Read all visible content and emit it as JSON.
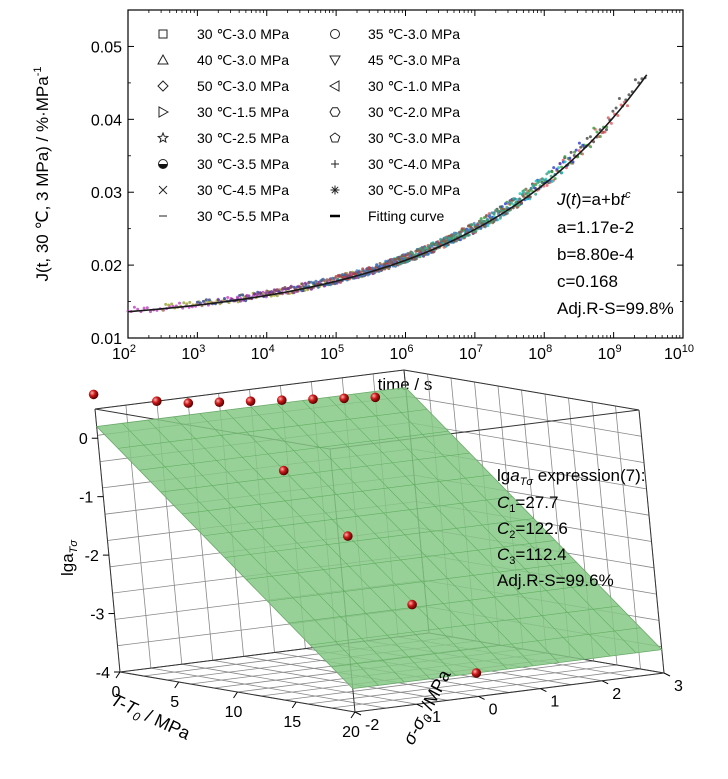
{
  "chart_data": [
    {
      "type": "line",
      "title": "",
      "xlabel": "time / s",
      "ylabel": "J(t, 30 ℃, 3 MPa) / %·MPa",
      "ylabel_sup": "-1",
      "xscale": "log",
      "xlim": [
        100,
        10000000000
      ],
      "ylim": [
        0.01,
        0.055
      ],
      "x_ticks": [
        {
          "base": "10",
          "exp": "2"
        },
        {
          "base": "10",
          "exp": "3"
        },
        {
          "base": "10",
          "exp": "4"
        },
        {
          "base": "10",
          "exp": "5"
        },
        {
          "base": "10",
          "exp": "6"
        },
        {
          "base": "10",
          "exp": "7"
        },
        {
          "base": "10",
          "exp": "8"
        },
        {
          "base": "10",
          "exp": "9"
        },
        {
          "base": "10",
          "exp": "10"
        }
      ],
      "y_ticks": [
        "0.01",
        "0.02",
        "0.03",
        "0.04",
        "0.05"
      ],
      "y_tick_values": [
        0.01,
        0.02,
        0.03,
        0.04,
        0.05
      ],
      "legend_placement": "top-left",
      "legend": [
        {
          "label": "30 ℃-3.0 MPa",
          "symbol": "square",
          "color": "#444444",
          "x_range": [
            6.3,
            9.5
          ]
        },
        {
          "label": "35 ℃-3.0 MPa",
          "symbol": "circle",
          "color": "#e05a5a",
          "x_range": [
            6.0,
            9.2
          ]
        },
        {
          "label": "40 ℃-3.0 MPa",
          "symbol": "triangle-up",
          "color": "#3a9a3a",
          "x_range": [
            5.7,
            8.9
          ]
        },
        {
          "label": "45 ℃-3.0 MPa",
          "symbol": "triangle-down",
          "color": "#2a3ad0",
          "x_range": [
            5.4,
            8.6
          ]
        },
        {
          "label": "50 ℃-3.0 MPa",
          "symbol": "diamond",
          "color": "#20c0c0",
          "x_range": [
            5.1,
            8.3
          ]
        },
        {
          "label": "30 ℃-1.0 MPa",
          "symbol": "triangle-left",
          "color": "#c040c0",
          "x_range": [
            2.0,
            5.2
          ]
        },
        {
          "label": "30 ℃-1.5 MPa",
          "symbol": "triangle-right",
          "color": "#9aa030",
          "x_range": [
            2.5,
            5.5
          ]
        },
        {
          "label": "30 ℃-2.0 MPa",
          "symbol": "hexagon",
          "color": "#304090",
          "x_range": [
            3.0,
            6.0
          ]
        },
        {
          "label": "30 ℃-2.5 MPa",
          "symbol": "star",
          "color": "#803090",
          "x_range": [
            3.5,
            6.3
          ]
        },
        {
          "label": "30 ℃-3.0 MPa",
          "symbol": "pentagon",
          "color": "#905050",
          "x_range": [
            4.0,
            6.6
          ]
        },
        {
          "label": "30 ℃-3.5 MPa",
          "symbol": "half-circle",
          "color": "#3070a0",
          "x_range": [
            4.5,
            6.9
          ]
        },
        {
          "label": "30 ℃-4.0 MPa",
          "symbol": "plus",
          "color": "#b04040",
          "x_range": [
            5.0,
            7.2
          ]
        },
        {
          "label": "30 ℃-4.5 MPa",
          "symbol": "cross",
          "color": "#4080c0",
          "x_range": [
            5.3,
            7.5
          ]
        },
        {
          "label": "30 ℃-5.0 MPa",
          "symbol": "asterisk",
          "color": "#806040",
          "x_range": [
            5.6,
            7.8
          ]
        },
        {
          "label": "30 ℃-5.5 MPa",
          "symbol": "dash",
          "color": "#40a080",
          "x_range": [
            5.9,
            8.1
          ]
        },
        {
          "label": "Fitting curve",
          "symbol": "line",
          "color": "#000000"
        }
      ],
      "fit": {
        "a": 0.0117,
        "b": 0.00088,
        "c": 0.168,
        "x_range": [
          100,
          3000000000
        ]
      },
      "annotation": {
        "formula_italic": "J",
        "formula_mid": "(",
        "formula_italic2": "t",
        "formula_rest": ")=a+b",
        "formula_italic3": "t",
        "formula_sup": "c",
        "lines": [
          "a=1.17e-2",
          "b=8.80e-4",
          "c=0.168",
          "Adj.R-S=99.8%"
        ]
      }
    },
    {
      "type": "scatter",
      "title": "",
      "zlabel": "lga",
      "zlabel_sub": "Tσ",
      "xlabel": "T-T",
      "xlabel_sub": "0",
      "xlabel_unit": " / MPa",
      "ylabel": "σ-σ",
      "ylabel_sub": "0",
      "ylabel_unit": " /MPa",
      "z_ticks": [
        "0",
        "-1",
        "-2",
        "-3",
        "-4"
      ],
      "x_ticks": [
        "0",
        "5",
        "10",
        "15",
        "20"
      ],
      "y_ticks": [
        "-2",
        "-1",
        "0",
        "1",
        "2",
        "3"
      ],
      "xlim": [
        0,
        20
      ],
      "ylim": [
        -2,
        3
      ],
      "zlim": [
        -4,
        0.5
      ],
      "surface_color": "#88cc88",
      "point_color": "#cc1a1a",
      "points": [
        {
          "x": 0,
          "y": -2,
          "z": 0.75
        },
        {
          "x": 0,
          "y": -1,
          "z": 0.5
        },
        {
          "x": 0,
          "y": -0.5,
          "z": 0.4
        },
        {
          "x": 0,
          "y": 0,
          "z": 0.35
        },
        {
          "x": 0,
          "y": 0.5,
          "z": 0.3
        },
        {
          "x": 0,
          "y": 1,
          "z": 0.25
        },
        {
          "x": 0,
          "y": 1.5,
          "z": 0.2
        },
        {
          "x": 0,
          "y": 2,
          "z": 0.15
        },
        {
          "x": 0,
          "y": 2.5,
          "z": 0.1
        },
        {
          "x": 5,
          "y": 0,
          "z": -0.65
        },
        {
          "x": 10,
          "y": 0,
          "z": -1.6
        },
        {
          "x": 15,
          "y": 0,
          "z": -2.6
        },
        {
          "x": 20,
          "y": 0,
          "z": -3.6
        }
      ],
      "annotation": {
        "title_pre": "lg",
        "title_italic": "a",
        "title_sub": "Tσ",
        "title_post": " expression(7):",
        "lines": [
          {
            "name": "C",
            "sub": "1",
            "value": "=27.7"
          },
          {
            "name": "C",
            "sub": "2",
            "value": "=122.6"
          },
          {
            "name": "C",
            "sub": "3",
            "value": "=112.4"
          },
          {
            "name": "",
            "sub": "",
            "value": "Adj.R-S=99.6%"
          }
        ]
      }
    }
  ]
}
